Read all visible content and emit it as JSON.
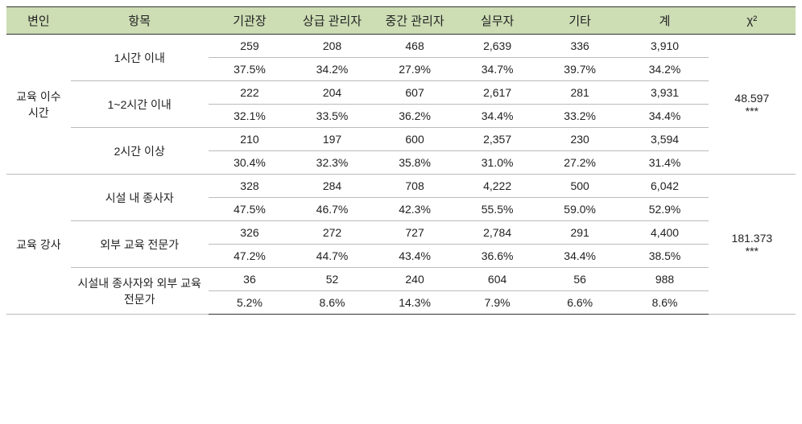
{
  "header": {
    "var": "변인",
    "item": "항목",
    "cols": [
      "기관장",
      "상급 관리자",
      "중간 관리자",
      "실무자",
      "기타",
      "계"
    ],
    "chi": "χ²"
  },
  "body": [
    {
      "var_label": "교육 이수 시간",
      "chi": "48.597",
      "chi_sig": "***",
      "rows": [
        {
          "item": "1시간 이내",
          "count": [
            "259",
            "208",
            "468",
            "2,639",
            "336",
            "3,910"
          ],
          "pct": [
            "37.5%",
            "34.2%",
            "27.9%",
            "34.7%",
            "39.7%",
            "34.2%"
          ]
        },
        {
          "item": "1~2시간 이내",
          "count": [
            "222",
            "204",
            "607",
            "2,617",
            "281",
            "3,931"
          ],
          "pct": [
            "32.1%",
            "33.5%",
            "36.2%",
            "34.4%",
            "33.2%",
            "34.4%"
          ]
        },
        {
          "item": "2시간 이상",
          "count": [
            "210",
            "197",
            "600",
            "2,357",
            "230",
            "3,594"
          ],
          "pct": [
            "30.4%",
            "32.3%",
            "35.8%",
            "31.0%",
            "27.2%",
            "31.4%"
          ]
        }
      ]
    },
    {
      "var_label": "교육 강사",
      "chi": "181.373",
      "chi_sig": "***",
      "rows": [
        {
          "item": "시설 내 종사자",
          "count": [
            "328",
            "284",
            "708",
            "4,222",
            "500",
            "6,042"
          ],
          "pct": [
            "47.5%",
            "46.7%",
            "42.3%",
            "55.5%",
            "59.0%",
            "52.9%"
          ]
        },
        {
          "item": "외부 교육 전문가",
          "count": [
            "326",
            "272",
            "727",
            "2,784",
            "291",
            "4,400"
          ],
          "pct": [
            "47.2%",
            "44.7%",
            "43.4%",
            "36.6%",
            "34.4%",
            "38.5%"
          ]
        },
        {
          "item": "시설내 종사자와 외부 교육 전문가",
          "count": [
            "36",
            "52",
            "240",
            "604",
            "56",
            "988"
          ],
          "pct": [
            "5.2%",
            "8.6%",
            "14.3%",
            "7.9%",
            "6.6%",
            "8.6%"
          ]
        }
      ]
    }
  ]
}
